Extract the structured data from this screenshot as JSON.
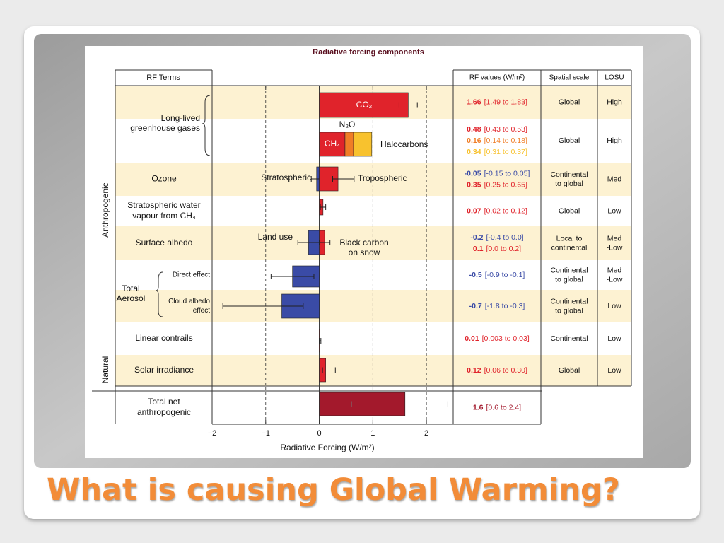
{
  "slide_title": "What is causing Global Warming?",
  "chart_data": {
    "type": "bar",
    "orientation": "horizontal",
    "title": "Radiative forcing components",
    "xlabel": "Radiative Forcing (W/m²)",
    "xlim": [
      -2,
      2.5
    ],
    "xticks": [
      {
        "value": -2,
        "label": "−2"
      },
      {
        "value": -1,
        "label": "−1"
      },
      0,
      1,
      2
    ],
    "grid": true,
    "headers": {
      "terms": "RF Terms",
      "values": "RF values (W/m²)",
      "scale": "Spatial scale",
      "losu": "LOSU"
    },
    "groups": {
      "anthropogenic": "Anthropogenic",
      "natural": "Natural",
      "ghg": [
        "Long-lived",
        "greenhouse gases"
      ],
      "aerosol": [
        "Total",
        "Aerosol"
      ]
    },
    "rows": [
      {
        "scale": [
          "Global"
        ],
        "losu": [
          "High"
        ],
        "bars": [
          {
            "label": [
              "CO₂"
            ],
            "value": 1.66,
            "low": 1.49,
            "high": 1.83,
            "range_label": "[1.49 to 1.83]",
            "color": "#e0232b"
          }
        ]
      },
      {
        "stacked": true,
        "scale": [
          "Global"
        ],
        "losu": [
          "High"
        ],
        "bars": [
          {
            "label": [
              "CH₄"
            ],
            "value": 0.48,
            "low": 0.43,
            "high": 0.53,
            "range_label": "[0.43 to 0.53]",
            "color": "#e0232b"
          },
          {
            "label": [
              "N₂O"
            ],
            "value": 0.16,
            "low": 0.14,
            "high": 0.18,
            "range_label": "[0.14 to 0.18]",
            "color": "#f07d26"
          },
          {
            "label": [
              "Halocarbons"
            ],
            "value": 0.34,
            "low": 0.31,
            "high": 0.37,
            "range_label": "[0.31 to 0.37]",
            "color": "#f8c22e"
          }
        ]
      },
      {
        "term": [
          "Ozone"
        ],
        "scale": [
          "Continental",
          "to global"
        ],
        "losu": [
          "Med"
        ],
        "bars": [
          {
            "label": [
              "Stratospheric"
            ],
            "value": -0.05,
            "low": -0.15,
            "high": 0.05,
            "range_label": "[-0.15 to 0.05]",
            "color": "#3a4ba6"
          },
          {
            "label": [
              "Tropospheric"
            ],
            "value": 0.35,
            "low": 0.25,
            "high": 0.65,
            "range_label": "[0.25 to 0.65]",
            "color": "#e0232b"
          }
        ]
      },
      {
        "term": [
          "Stratospheric water",
          "vapour from CH₄"
        ],
        "scale": [
          "Global"
        ],
        "losu": [
          "Low"
        ],
        "bars": [
          {
            "value": 0.07,
            "low": 0.02,
            "high": 0.12,
            "range_label": "[0.02 to 0.12]",
            "color": "#e0232b"
          }
        ]
      },
      {
        "term": [
          "Surface albedo"
        ],
        "scale": [
          "Local to",
          "continental"
        ],
        "losu": [
          "Med",
          "-Low"
        ],
        "bars": [
          {
            "label": [
              "Land use"
            ],
            "value": -0.2,
            "low": -0.4,
            "high": 0.0,
            "range_label": "[-0.4 to 0.0]",
            "color": "#3a4ba6"
          },
          {
            "label": [
              "Black carbon",
              "on snow"
            ],
            "value": 0.1,
            "low": 0.0,
            "high": 0.2,
            "range_label": "[0.0 to 0.2]",
            "color": "#e0232b"
          }
        ]
      },
      {
        "term": [
          "Direct effect"
        ],
        "scale": [
          "Continental",
          "to global"
        ],
        "losu": [
          "Med",
          "-Low"
        ],
        "bars": [
          {
            "value": -0.5,
            "low": -0.9,
            "high": -0.1,
            "range_label": "[-0.9 to -0.1]",
            "color": "#3a4ba6"
          }
        ]
      },
      {
        "term": [
          "Cloud albedo",
          "effect"
        ],
        "scale": [
          "Continental",
          "to global"
        ],
        "losu": [
          "Low"
        ],
        "bars": [
          {
            "value": -0.7,
            "low": -1.8,
            "high": -0.3,
            "range_label": "[-1.8 to -0.3]",
            "color": "#3a4ba6"
          }
        ]
      },
      {
        "term": [
          "Linear contrails"
        ],
        "scale": [
          "Continental"
        ],
        "losu": [
          "Low"
        ],
        "bars": [
          {
            "value": 0.01,
            "low": 0.003,
            "high": 0.03,
            "range_label": "[0.003 to 0.03]",
            "color": "#e0232b"
          }
        ]
      },
      {
        "term": [
          "Solar irradiance"
        ],
        "scale": [
          "Global"
        ],
        "losu": [
          "Low"
        ],
        "bars": [
          {
            "value": 0.12,
            "low": 0.06,
            "high": 0.3,
            "range_label": "[0.06 to 0.30]",
            "color": "#e0232b"
          }
        ]
      },
      {
        "term": [
          "Total net",
          "anthropogenic"
        ],
        "bars": [
          {
            "value": 1.6,
            "low": 0.6,
            "high": 2.4,
            "range_label": "[0.6 to 2.4]",
            "color": "#a3192c"
          }
        ]
      }
    ]
  }
}
